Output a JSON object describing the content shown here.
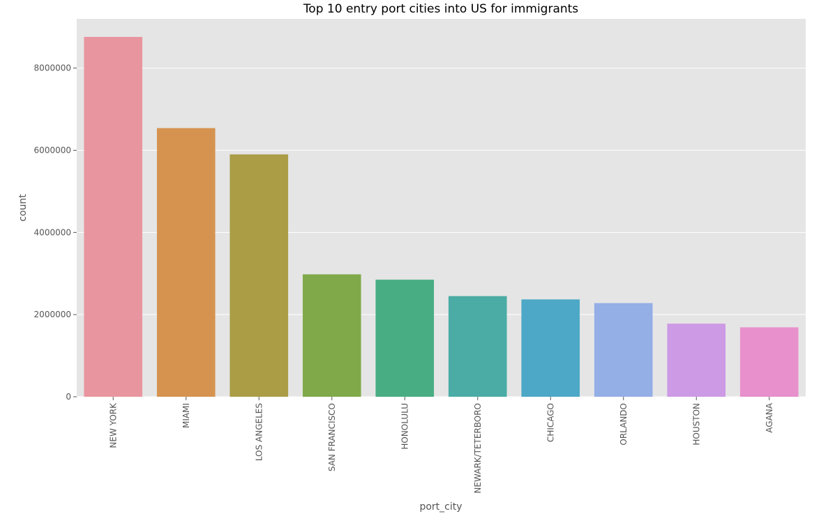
{
  "chart_data": {
    "type": "bar",
    "title": "Top 10 entry port cities into US for immigrants",
    "xlabel": "port_city",
    "ylabel": "count",
    "categories": [
      "NEW YORK",
      "MIAMI",
      "LOS ANGELES",
      "SAN FRANCISCO",
      "HONOLULU",
      "NEWARK/TETERBORO",
      "CHICAGO",
      "ORLANDO",
      "HOUSTON",
      "AGANA"
    ],
    "values": [
      8760000,
      6540000,
      5900000,
      2980000,
      2850000,
      2450000,
      2370000,
      2280000,
      1780000,
      1690000
    ],
    "colors": [
      "#e9959f",
      "#d69350",
      "#aa9d46",
      "#80a949",
      "#49ad83",
      "#4aaca5",
      "#4ca8c6",
      "#94aee6",
      "#cd9ae5",
      "#e890cc"
    ],
    "ylim": [
      0,
      9200000
    ],
    "yticks": [
      0,
      2000000,
      4000000,
      6000000,
      8000000
    ],
    "ytick_labels": [
      "0",
      "2000000",
      "4000000",
      "6000000",
      "8000000"
    ],
    "grid": true,
    "background": "#e5e5e5"
  }
}
